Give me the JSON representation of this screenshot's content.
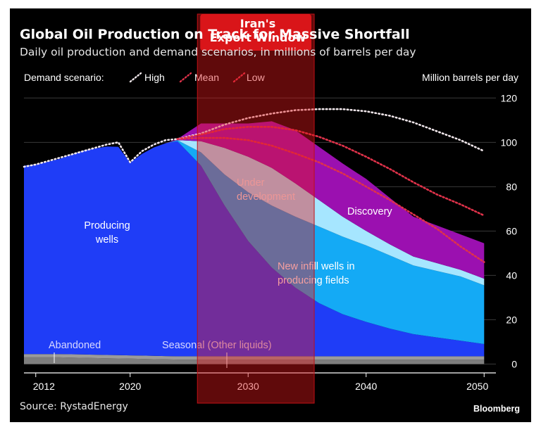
{
  "chart_data": {
    "type": "area",
    "title": "Global Oil Production on Track for Massive Shortfall",
    "subtitle": "Daily oil production and demand scenarios, in millions of barrels per day",
    "ylabel": "Million barrels per day",
    "xlim": [
      2011,
      2051
    ],
    "ylim": [
      -4,
      122
    ],
    "x_ticks": [
      2012,
      2020,
      2030,
      2040,
      2050
    ],
    "y_ticks": [
      0,
      20,
      40,
      60,
      80,
      100,
      120
    ],
    "legend": {
      "title": "Demand scenario:",
      "items": [
        "High",
        "Mean",
        "Low"
      ]
    },
    "x": [
      2011,
      2012,
      2014,
      2016,
      2018,
      2019,
      2020,
      2021,
      2022,
      2023,
      2024,
      2026,
      2028,
      2030,
      2032,
      2034,
      2036,
      2038,
      2040,
      2042,
      2044,
      2046,
      2048,
      2050
    ],
    "series": [
      {
        "name": "Abandoned",
        "values": [
          3,
          3,
          3,
          2.8,
          2.6,
          2.5,
          2.4,
          2.3,
          2.2,
          2.1,
          2,
          2,
          2,
          2,
          2,
          2,
          2,
          2,
          2,
          2,
          2,
          2,
          2,
          2
        ]
      },
      {
        "name": "Seasonal (Other liquids)",
        "values": [
          1.5,
          1.5,
          1.5,
          1.5,
          1.5,
          1.5,
          1.5,
          1.5,
          1.5,
          1.5,
          1.5,
          1.5,
          1.5,
          1.5,
          1.5,
          1.5,
          1.5,
          1.5,
          1.5,
          1.5,
          1.5,
          1.5,
          1.5,
          1.5
        ]
      },
      {
        "name": "Producing wells",
        "values": [
          85,
          85.5,
          88,
          92,
          94,
          94,
          87,
          91,
          94,
          96,
          97,
          86,
          68,
          52,
          40,
          31,
          24,
          19,
          15.5,
          12.5,
          10,
          8.5,
          7,
          5.5
        ]
      },
      {
        "name": "New infill wells in producing fields",
        "values": [
          0,
          0,
          0,
          0,
          0,
          0,
          0,
          0,
          0,
          0,
          0.5,
          6,
          14,
          22,
          28,
          32,
          34.5,
          35,
          34.5,
          33,
          31,
          30,
          29,
          26.5
        ]
      },
      {
        "name": "Under development",
        "values": [
          0,
          0,
          0,
          0,
          0,
          0,
          0,
          0,
          0,
          0,
          0,
          5,
          12,
          16,
          17,
          15,
          12,
          9,
          6.5,
          5,
          4,
          3.5,
          3,
          3
        ]
      },
      {
        "name": "Discovery",
        "values": [
          0,
          0,
          0,
          0,
          0,
          0,
          0,
          0,
          0,
          0,
          0.5,
          8,
          11,
          15,
          21,
          24,
          24,
          24,
          23.5,
          21,
          18,
          17,
          16,
          16
        ]
      }
    ],
    "demand_scenarios": [
      {
        "name": "High",
        "x": [
          2011,
          2012,
          2014,
          2016,
          2018,
          2019,
          2020,
          2021,
          2022,
          2023,
          2024,
          2026,
          2028,
          2030,
          2032,
          2034,
          2036,
          2038,
          2040,
          2042,
          2044,
          2046,
          2048,
          2050
        ],
        "values": [
          89,
          90,
          93,
          96,
          99,
          100,
          91,
          96,
          99,
          101,
          101.5,
          104,
          108,
          111,
          113,
          114.5,
          115,
          115,
          114,
          112,
          109,
          105,
          101,
          96
        ]
      },
      {
        "name": "Mean",
        "x": [
          2024,
          2026,
          2028,
          2030,
          2032,
          2034,
          2036,
          2038,
          2040,
          2042,
          2044,
          2046,
          2048,
          2050
        ],
        "values": [
          101.5,
          103.5,
          106,
          107,
          107,
          105.5,
          102.5,
          98.5,
          93.5,
          88,
          82,
          76.5,
          72,
          67
        ]
      },
      {
        "name": "Low",
        "x": [
          2024,
          2026,
          2028,
          2030,
          2032,
          2034,
          2036,
          2038,
          2040,
          2042,
          2044,
          2046,
          2048,
          2050
        ],
        "values": [
          101.5,
          102,
          102,
          101,
          98.5,
          95,
          91,
          86,
          80,
          74,
          67.5,
          61,
          53,
          46
        ]
      }
    ],
    "area_labels": [
      "Producing wells",
      "Under development",
      "Discovery",
      "New infill wells in producing fields",
      "Abandoned",
      "Seasonal (Other liquids)"
    ],
    "highlight": {
      "label": "Iran's Export Window",
      "x_range": [
        2025.7,
        2035.6
      ]
    },
    "colors": {
      "Abandoned": "#7e7e7e",
      "Seasonal (Other liquids)": "#9b9b9b",
      "Producing wells": "#1f3df7",
      "New infill wells in producing fields": "#14aaf5",
      "Under development": "#a6e6ff",
      "Discovery": "#9b10b0",
      "highlight": "#e4171b"
    }
  },
  "annotations": {
    "producing": [
      "Producing",
      "wells"
    ],
    "under": [
      "Under",
      "development"
    ],
    "discovery": "Discovery",
    "infill": [
      "New infill wells in",
      "producing fields"
    ],
    "abandoned": "Abandoned",
    "seasonal": "Seasonal (Other liquids)"
  },
  "overlay_label": [
    "Iran's",
    "Export Window"
  ],
  "source": "Source: RystadEnergy",
  "brand": "Bloomberg"
}
